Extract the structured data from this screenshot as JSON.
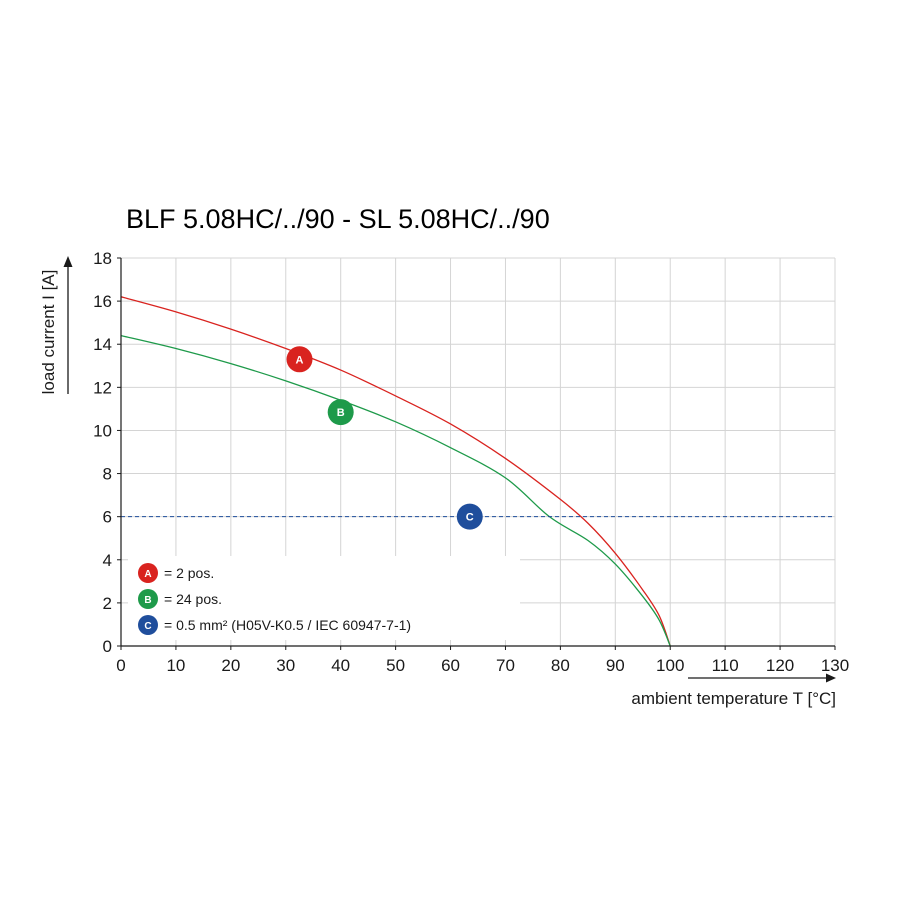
{
  "chart_data": {
    "type": "line",
    "title": "BLF 5.08HC/../90 - SL 5.08HC/../90",
    "xlabel": "ambient temperature T [°C]",
    "ylabel": "load current I [A]",
    "xlim": [
      0,
      130
    ],
    "ylim": [
      0,
      18
    ],
    "xticks": [
      0,
      10,
      20,
      30,
      40,
      50,
      60,
      70,
      80,
      90,
      100,
      110,
      120,
      130
    ],
    "yticks": [
      0,
      2,
      4,
      6,
      8,
      10,
      12,
      14,
      16,
      18
    ],
    "grid": true,
    "legend_position": "bottom-left",
    "series": [
      {
        "marker": "A",
        "legend": "= 2 pos.",
        "color": "#d9231f",
        "x": [
          0,
          10,
          20,
          30,
          40,
          50,
          60,
          70,
          80,
          85,
          90,
          95,
          98,
          100
        ],
        "y": [
          16.2,
          15.5,
          14.7,
          13.8,
          12.8,
          11.6,
          10.3,
          8.7,
          6.8,
          5.7,
          4.3,
          2.6,
          1.4,
          0
        ]
      },
      {
        "marker": "B",
        "legend": "= 24 pos.",
        "color": "#1e9a4a",
        "x": [
          0,
          10,
          20,
          30,
          40,
          50,
          60,
          70,
          78,
          85,
          90,
          95,
          98,
          100
        ],
        "y": [
          14.4,
          13.8,
          13.1,
          12.3,
          11.4,
          10.4,
          9.2,
          7.8,
          6.0,
          4.9,
          3.8,
          2.3,
          1.2,
          0
        ]
      },
      {
        "marker": "C",
        "legend": "= 0.5 mm² (H05V-K0.5 / IEC 60947-7-1)",
        "color": "#1f4e9c",
        "style": "dashed",
        "x": [
          0,
          130
        ],
        "y": [
          6,
          6
        ]
      }
    ],
    "markers": [
      {
        "label": "A",
        "x": 32.5,
        "y": 13.3,
        "color": "#d9231f"
      },
      {
        "label": "B",
        "x": 40,
        "y": 10.85,
        "color": "#1e9a4a"
      },
      {
        "label": "C",
        "x": 63.5,
        "y": 6,
        "color": "#1f4e9c"
      }
    ]
  }
}
